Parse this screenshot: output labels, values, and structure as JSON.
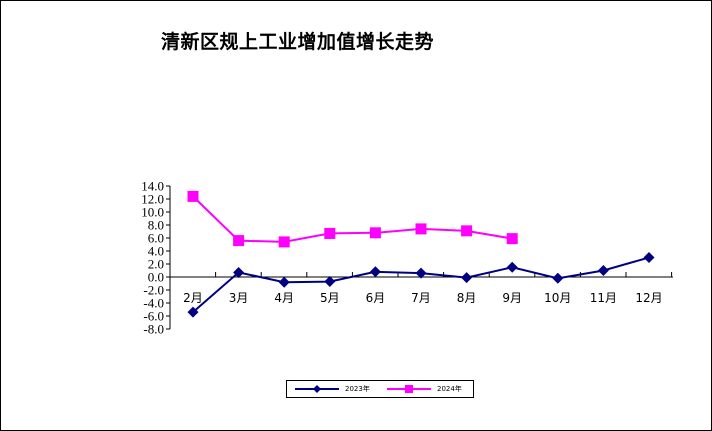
{
  "chart_data": {
    "type": "line",
    "title": "清新区规上工业增加值增长走势",
    "categories": [
      "2月",
      "3月",
      "4月",
      "5月",
      "6月",
      "7月",
      "8月",
      "9月",
      "10月",
      "11月",
      "12月"
    ],
    "y_ticks": [
      "14.0",
      "12.0",
      "10.0",
      "8.0",
      "6.0",
      "4.0",
      "2.0",
      "0.0",
      "-2.0",
      "-4.0",
      "-6.0",
      "-8.0"
    ],
    "ylim": [
      -8,
      14
    ],
    "grid": false,
    "legend_position": "bottom",
    "series": [
      {
        "name": "2023年",
        "color": "#000080",
        "marker": "diamond",
        "values": [
          -5.4,
          0.7,
          -0.8,
          -0.7,
          0.8,
          0.6,
          -0.1,
          1.5,
          -0.2,
          1.0,
          3.0
        ]
      },
      {
        "name": "2024年",
        "color": "#ff00ff",
        "marker": "square",
        "values": [
          12.4,
          5.6,
          5.4,
          6.7,
          6.8,
          7.4,
          7.1,
          5.9,
          null,
          null,
          null
        ]
      }
    ]
  }
}
